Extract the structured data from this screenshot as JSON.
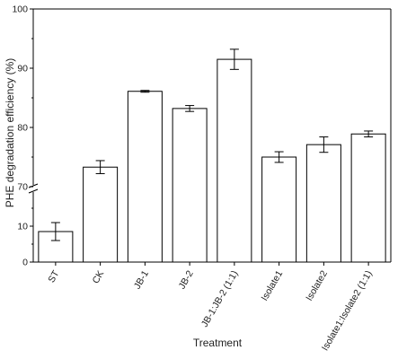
{
  "chart_data": {
    "type": "bar",
    "title": "",
    "xlabel": "Treatment",
    "ylabel": "PHE degradation efficiency (%)",
    "categories": [
      "ST",
      "CK",
      "JB-1",
      "JB-2",
      "JB-1:JB-2 (1:1)",
      "Isolate1",
      "Isolate2",
      "Isolate1:Isolate2 (1:1)"
    ],
    "values": [
      8.5,
      73.3,
      86.1,
      83.2,
      91.5,
      75.0,
      77.1,
      78.9
    ],
    "errors": [
      2.5,
      1.1,
      0.15,
      0.5,
      1.7,
      0.9,
      1.3,
      0.5
    ],
    "ylim": [
      0,
      100
    ],
    "axis_break": {
      "lower_segment": [
        0,
        20
      ],
      "upper_segment": [
        70,
        100
      ]
    },
    "yticks_lower": [
      "0",
      "10"
    ],
    "yticks_upper": [
      "70",
      "80",
      "90",
      "100"
    ],
    "grid": false,
    "bar_fill": "#ffffff",
    "bar_stroke": "#000000"
  }
}
